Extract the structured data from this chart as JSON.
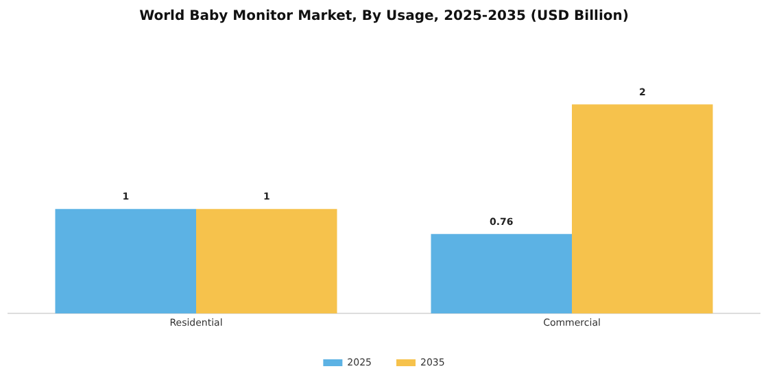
{
  "chart_data": {
    "type": "bar",
    "title": "World Baby Monitor Market, By Usage, 2025-2035 (USD Billion)",
    "categories": [
      "Residential",
      "Commercial"
    ],
    "legend": "bottom",
    "data_labels": true,
    "tick_labels": "x",
    "series": [
      {
        "name": "2025",
        "color": "#5cb2e4",
        "values": [
          1,
          0.76
        ]
      },
      {
        "name": "2035",
        "color": "#f6c24c",
        "values": [
          1,
          2
        ]
      }
    ]
  }
}
